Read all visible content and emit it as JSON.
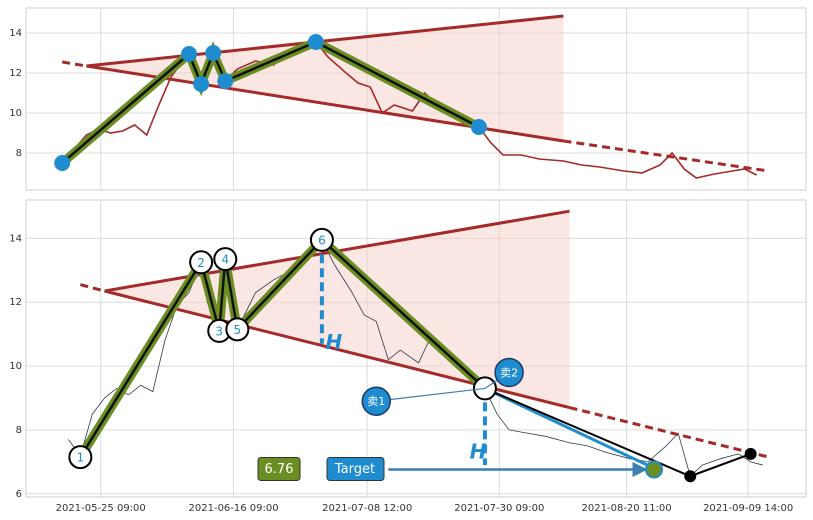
{
  "chart_data": [
    {
      "type": "line",
      "xlim": [
        "2021-05-13 00:00",
        "2021-09-19 04:00"
      ],
      "xticks": [
        "2021-05-25 09:00",
        "2021-06-16 09:00",
        "2021-07-08 12:00",
        "2021-07-30 09:00",
        "2021-08-20 11:00",
        "2021-09-09 14:00"
      ],
      "ylim": [
        6.15,
        15.25
      ],
      "yticks": [
        8,
        10,
        12,
        14
      ],
      "grid": true,
      "color": "#a52a2a",
      "x": [
        "2021-05-19",
        "2021-05-21",
        "2021-05-23",
        "2021-05-25",
        "2021-05-27",
        "2021-05-29",
        "2021-05-31",
        "2021-06-02",
        "2021-06-04",
        "2021-06-06",
        "2021-06-07",
        "2021-06-09",
        "2021-06-10",
        "2021-06-11",
        "2021-06-12",
        "2021-06-13",
        "2021-06-14",
        "2021-06-15",
        "2021-06-17",
        "2021-06-20",
        "2021-06-23",
        "2021-06-25",
        "2021-06-28",
        "2021-06-30",
        "2021-07-02",
        "2021-07-05",
        "2021-07-07",
        "2021-07-09",
        "2021-07-11",
        "2021-07-13",
        "2021-07-16",
        "2021-07-18",
        "2021-07-21",
        "2021-07-24",
        "2021-07-27",
        "2021-07-29",
        "2021-07-31",
        "2021-08-03",
        "2021-08-06",
        "2021-08-10",
        "2021-08-13",
        "2021-08-16",
        "2021-08-20",
        "2021-08-23",
        "2021-08-26",
        "2021-08-28",
        "2021-08-30",
        "2021-09-01",
        "2021-09-04",
        "2021-09-07",
        "2021-09-09",
        "2021-09-11"
      ],
      "values": [
        7.5,
        8.2,
        8.9,
        9.2,
        9.0,
        9.1,
        9.4,
        8.9,
        10.4,
        11.8,
        12.2,
        12.95,
        11.9,
        11.45,
        12.4,
        13.0,
        12.1,
        11.6,
        12.2,
        12.6,
        12.4,
        13.0,
        13.2,
        13.55,
        12.8,
        12.0,
        11.5,
        11.3,
        10.0,
        10.4,
        10.1,
        11.0,
        10.2,
        9.8,
        9.3,
        8.5,
        7.9,
        7.9,
        7.7,
        7.6,
        7.4,
        7.3,
        7.1,
        7.0,
        7.4,
        8.0,
        7.2,
        6.75,
        6.95,
        7.1,
        7.2,
        6.9
      ],
      "zigzag": {
        "x": [
          "2021-05-19",
          "2021-06-09",
          "2021-06-11",
          "2021-06-13",
          "2021-06-15",
          "2021-06-30",
          "2021-07-27"
        ],
        "values": [
          7.5,
          12.95,
          11.45,
          13.0,
          11.6,
          13.55,
          9.3
        ]
      },
      "upper_line": {
        "x": [
          "2021-05-23",
          "2021-08-10"
        ],
        "values": [
          12.35,
          14.85
        ]
      },
      "lower_line": {
        "x": [
          "2021-05-19",
          "2021-05-23",
          "2021-08-10",
          "2021-09-13"
        ],
        "values": [
          12.55,
          12.35,
          8.6,
          7.1
        ]
      }
    },
    {
      "type": "line",
      "xlim": [
        "2021-05-13 00:00",
        "2021-09-19 04:00"
      ],
      "xticks": [
        "2021-05-25 09:00",
        "2021-06-16 09:00",
        "2021-07-08 12:00",
        "2021-07-30 09:00",
        "2021-08-20 11:00",
        "2021-09-09 14:00"
      ],
      "ylim": [
        5.9,
        15.2
      ],
      "yticks": [
        6,
        8,
        10,
        12,
        14
      ],
      "grid": true,
      "color": "#2f3b4c",
      "x": [
        "2021-05-20",
        "2021-05-22",
        "2021-05-24",
        "2021-05-26",
        "2021-05-28",
        "2021-05-30",
        "2021-06-01",
        "2021-06-03",
        "2021-06-05",
        "2021-06-07",
        "2021-06-09",
        "2021-06-11",
        "2021-06-12",
        "2021-06-14",
        "2021-06-15",
        "2021-06-17",
        "2021-06-20",
        "2021-06-23",
        "2021-06-25",
        "2021-06-28",
        "2021-07-01",
        "2021-07-03",
        "2021-07-06",
        "2021-07-08",
        "2021-07-10",
        "2021-07-12",
        "2021-07-14",
        "2021-07-17",
        "2021-07-19",
        "2021-07-22",
        "2021-07-25",
        "2021-07-28",
        "2021-07-30",
        "2021-08-01",
        "2021-08-04",
        "2021-08-07",
        "2021-08-11",
        "2021-08-14",
        "2021-08-17",
        "2021-08-21",
        "2021-08-24",
        "2021-08-27",
        "2021-08-29",
        "2021-08-31",
        "2021-09-02",
        "2021-09-05",
        "2021-09-08",
        "2021-09-10",
        "2021-09-12"
      ],
      "values": [
        7.7,
        7.2,
        8.5,
        9.0,
        9.3,
        9.1,
        9.4,
        9.2,
        10.8,
        11.9,
        12.3,
        13.25,
        12.0,
        11.1,
        13.35,
        11.15,
        12.3,
        12.7,
        12.9,
        13.2,
        13.95,
        13.2,
        12.3,
        11.6,
        11.4,
        10.2,
        10.5,
        10.1,
        10.9,
        10.3,
        9.9,
        9.3,
        8.5,
        8.0,
        7.9,
        7.8,
        7.6,
        7.5,
        7.3,
        7.1,
        7.0,
        7.5,
        7.9,
        6.55,
        6.9,
        7.1,
        7.25,
        7.0,
        6.9
      ],
      "zigzag": {
        "x": [
          "2021-05-22",
          "2021-06-11",
          "2021-06-14",
          "2021-06-15",
          "2021-06-17",
          "2021-07-01",
          "2021-07-28"
        ],
        "values": [
          7.15,
          13.25,
          11.1,
          13.35,
          11.15,
          13.95,
          9.3
        ],
        "labels": [
          "1",
          "2",
          "3",
          "4",
          "5",
          "6",
          null
        ]
      },
      "upper_line": {
        "x": [
          "2021-05-26",
          "2021-08-11"
        ],
        "values": [
          12.35,
          14.85
        ]
      },
      "lower_line": {
        "x": [
          "2021-05-22",
          "2021-05-26",
          "2021-08-11",
          "2021-09-13"
        ],
        "values": [
          12.55,
          12.35,
          8.7,
          7.15
        ]
      },
      "projection": [
        {
          "x": [
            "2021-07-28",
            "2021-08-25"
          ],
          "values": [
            9.3,
            6.8
          ],
          "color": "#1f8ccf"
        },
        {
          "x": [
            "2021-07-28",
            "2021-08-31",
            "2021-09-10"
          ],
          "values": [
            9.3,
            6.55,
            7.25
          ],
          "color": "#000000"
        }
      ],
      "heights": [
        {
          "label": "H",
          "x": "2021-07-01",
          "values": [
            13.5,
            10.7
          ]
        },
        {
          "label": "H",
          "x": "2021-07-28",
          "values": [
            9.3,
            6.9
          ]
        }
      ],
      "sells": [
        {
          "label": "卖1",
          "x": "2021-07-10",
          "value": 8.9
        },
        {
          "label": "卖2",
          "x": "2021-08-01",
          "value": 9.8
        }
      ],
      "target": {
        "value": 6.76,
        "label": "Target",
        "x": [
          "2021-07-12",
          "2021-08-25"
        ]
      }
    }
  ]
}
